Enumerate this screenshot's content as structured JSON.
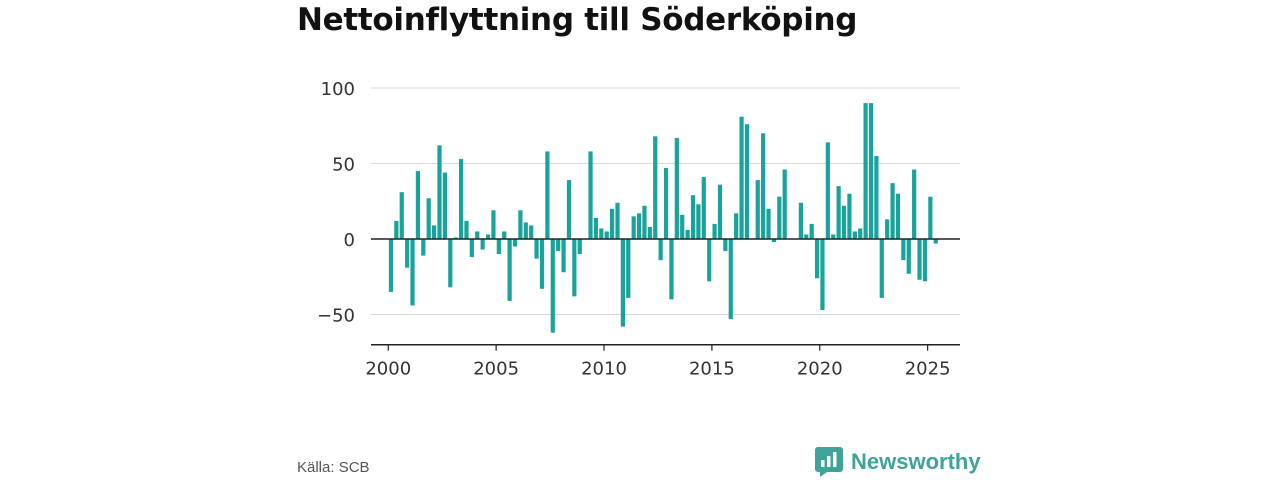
{
  "title": "Nettoinflyttning till Söderköping",
  "source": "Källa: SCB",
  "brand": {
    "name": "Newsworthy",
    "icon": "newsworthy-logo-icon",
    "color": "#3fa39a"
  },
  "chart_data": {
    "type": "bar",
    "bar_color": "#1aa39a",
    "ylim": [
      -70,
      100
    ],
    "yticks": [
      100,
      50,
      0,
      -50
    ],
    "ytick_labels": [
      "100",
      "50",
      "0",
      "−50"
    ],
    "xlim": [
      1999.2,
      2026.5
    ],
    "xticks": [
      2000,
      2005,
      2010,
      2015,
      2020,
      2025
    ],
    "xtick_labels": [
      "2000",
      "2005",
      "2010",
      "2015",
      "2020",
      "2025"
    ],
    "grid": true,
    "period": "quarterly",
    "start": "2000 Q1",
    "values": [
      -35,
      12,
      31,
      -19,
      -44,
      45,
      -11,
      27,
      9,
      62,
      44,
      -32,
      1,
      53,
      12,
      -12,
      5,
      -7,
      3,
      19,
      -10,
      5,
      -41,
      -5,
      19,
      11,
      9,
      -13,
      -33,
      58,
      -62,
      -8,
      -22,
      39,
      -38,
      -10,
      0,
      58,
      14,
      7,
      5,
      20,
      24,
      -58,
      -39,
      15,
      17,
      22,
      8,
      68,
      -14,
      47,
      -40,
      67,
      16,
      6,
      29,
      23,
      41,
      -28,
      10,
      36,
      -8,
      -53,
      17,
      81,
      76,
      0,
      39,
      70,
      20,
      -2,
      28,
      46,
      0,
      0,
      24,
      3,
      10,
      -26,
      -47,
      64,
      3,
      35,
      22,
      30,
      5,
      7,
      90,
      90,
      55,
      -39,
      13,
      37,
      30,
      -14,
      -23,
      46,
      -27,
      -28,
      28,
      -3
    ]
  }
}
